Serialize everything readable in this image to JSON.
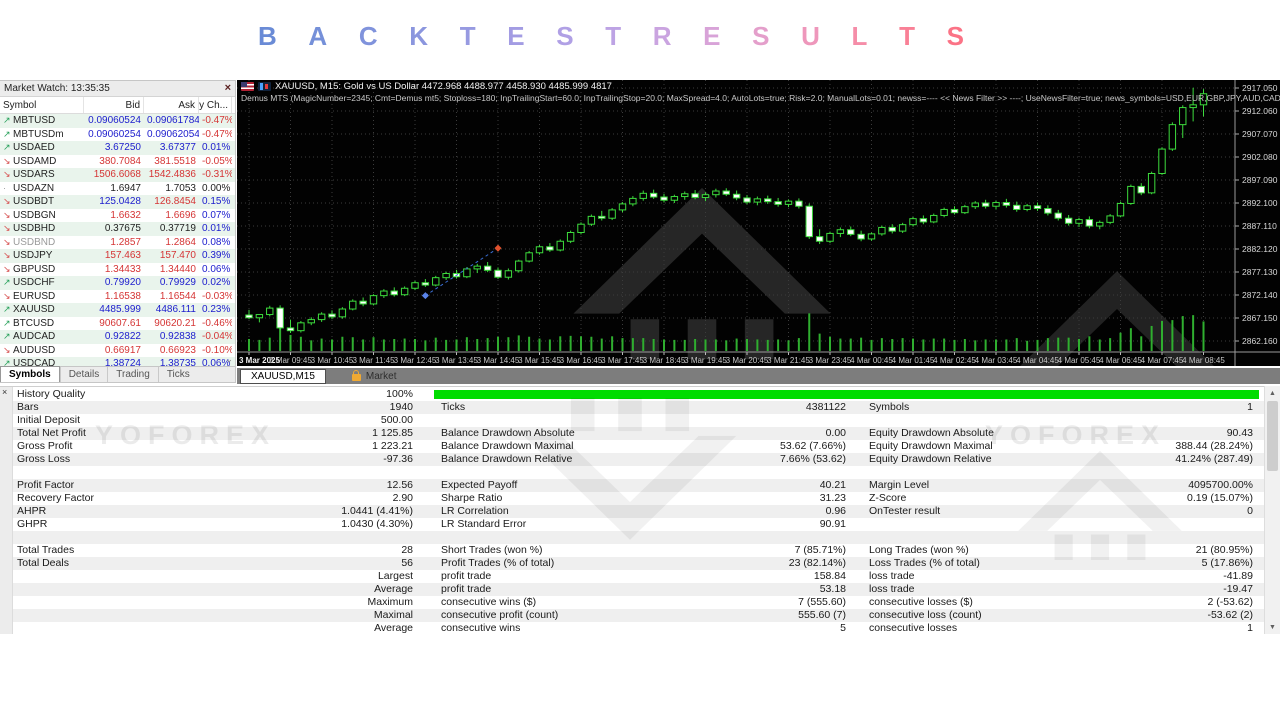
{
  "title": {
    "text": "BACKTEST RESULTS",
    "letters": [
      "B",
      "A",
      "C",
      "K",
      "T",
      "E",
      "S",
      "T",
      "R",
      "E",
      "S",
      "U",
      "L",
      "T",
      "S"
    ],
    "letter_colors": [
      "#6a8bd6",
      "#7590d9",
      "#8093dc",
      "#8b96de",
      "#979ae1",
      "#a39ce3",
      "#b0a0e5",
      "#bda3e4",
      "#caa4e0",
      "#d8a3d8",
      "#e49fcb",
      "#ee97bb",
      "#f58da8",
      "#f98096",
      "#fb7386"
    ]
  },
  "market_watch": {
    "header": "Market Watch: 13:35:35",
    "close_label": "×",
    "columns": [
      "Symbol",
      "Bid",
      "Ask",
      "Daily Ch..."
    ],
    "rows": [
      {
        "sym": "MBTUSD",
        "dir": "u",
        "bid": "0.09060524",
        "ask": "0.09061784",
        "chg": "-0.47%",
        "bc": "b",
        "ac": "b",
        "cc": "r",
        "sc": "n"
      },
      {
        "sym": "MBTUSDm",
        "dir": "u",
        "bid": "0.09060254",
        "ask": "0.09062054",
        "chg": "-0.47%",
        "bc": "b",
        "ac": "b",
        "cc": "r",
        "sc": "n"
      },
      {
        "sym": "USDAED",
        "dir": "u",
        "bid": "3.67250",
        "ask": "3.67377",
        "chg": "0.01%",
        "bc": "b",
        "ac": "b",
        "cc": "b",
        "sc": "n"
      },
      {
        "sym": "USDAMD",
        "dir": "d",
        "bid": "380.7084",
        "ask": "381.5518",
        "chg": "-0.05%",
        "bc": "r",
        "ac": "r",
        "cc": "r",
        "sc": "n"
      },
      {
        "sym": "USDARS",
        "dir": "d",
        "bid": "1506.6068",
        "ask": "1542.4836",
        "chg": "-0.31%",
        "bc": "r",
        "ac": "r",
        "cc": "r",
        "sc": "n"
      },
      {
        "sym": "USDAZN",
        "dir": "n",
        "bid": "1.6947",
        "ask": "1.7053",
        "chg": "0.00%",
        "bc": "k",
        "ac": "k",
        "cc": "k",
        "sc": "n"
      },
      {
        "sym": "USDBDT",
        "dir": "d",
        "bid": "125.0428",
        "ask": "126.8454",
        "chg": "0.15%",
        "bc": "b",
        "ac": "r",
        "cc": "b",
        "sc": "n"
      },
      {
        "sym": "USDBGN",
        "dir": "d",
        "bid": "1.6632",
        "ask": "1.6696",
        "chg": "0.07%",
        "bc": "r",
        "ac": "r",
        "cc": "b",
        "sc": "n"
      },
      {
        "sym": "USDBHD",
        "dir": "d",
        "bid": "0.37675",
        "ask": "0.37719",
        "chg": "0.01%",
        "bc": "k",
        "ac": "k",
        "cc": "b",
        "sc": "n"
      },
      {
        "sym": "USDBND",
        "dir": "d",
        "bid": "1.2857",
        "ask": "1.2864",
        "chg": "0.08%",
        "bc": "r",
        "ac": "r",
        "cc": "b",
        "sc": "g"
      },
      {
        "sym": "USDJPY",
        "dir": "d",
        "bid": "157.463",
        "ask": "157.470",
        "chg": "0.39%",
        "bc": "r",
        "ac": "r",
        "cc": "b",
        "sc": "n"
      },
      {
        "sym": "GBPUSD",
        "dir": "d",
        "bid": "1.34433",
        "ask": "1.34440",
        "chg": "0.06%",
        "bc": "r",
        "ac": "r",
        "cc": "b",
        "sc": "n"
      },
      {
        "sym": "USDCHF",
        "dir": "u",
        "bid": "0.79920",
        "ask": "0.79929",
        "chg": "0.02%",
        "bc": "b",
        "ac": "b",
        "cc": "b",
        "sc": "n"
      },
      {
        "sym": "EURUSD",
        "dir": "d",
        "bid": "1.16538",
        "ask": "1.16544",
        "chg": "-0.03%",
        "bc": "r",
        "ac": "r",
        "cc": "r",
        "sc": "n"
      },
      {
        "sym": "XAUUSD",
        "dir": "u",
        "bid": "4485.999",
        "ask": "4486.111",
        "chg": "0.23%",
        "bc": "b",
        "ac": "b",
        "cc": "b",
        "sc": "n"
      },
      {
        "sym": "BTCUSD",
        "dir": "u",
        "bid": "90607.61",
        "ask": "90620.21",
        "chg": "-0.46%",
        "bc": "r",
        "ac": "r",
        "cc": "r",
        "sc": "n"
      },
      {
        "sym": "AUDCAD",
        "dir": "u",
        "bid": "0.92822",
        "ask": "0.92838",
        "chg": "-0.04%",
        "bc": "b",
        "ac": "b",
        "cc": "r",
        "sc": "n"
      },
      {
        "sym": "AUDUSD",
        "dir": "d",
        "bid": "0.66917",
        "ask": "0.66923",
        "chg": "-0.10%",
        "bc": "r",
        "ac": "r",
        "cc": "r",
        "sc": "n"
      },
      {
        "sym": "USDCAD",
        "dir": "u",
        "bid": "1.38724",
        "ask": "1.38735",
        "chg": "0.06%",
        "bc": "b",
        "ac": "b",
        "cc": "b",
        "sc": "n"
      }
    ],
    "tabs": [
      "Symbols",
      "Details",
      "Trading",
      "Ticks"
    ],
    "active_tab": "Symbols"
  },
  "chart": {
    "title_line": "XAUUSD, M15:  Gold vs US Dollar   4472.968 4488.977 4458.930 4485.999  4817",
    "ea_line": "Demus MTS (MagicNumber=2345; Cmt=Demus mt5; Stoploss=180; InpTrailingStart=60.0; InpTrailingStop=20.0; MaxSpread=4.0; AutoLots=true; Risk=2.0; ManualLots=0.01; newss=---- << News Filter >> ----; UseNewsFilter=true; news_symbols=USD,EUR,GBP,JPY,AUD,CAD)",
    "active_tab": "XAUUSD,M15",
    "market_tab": "Market",
    "price_labels": [
      {
        "text": "2917.050",
        "value": 2917.05
      },
      {
        "text": "2912.060",
        "value": 2912.06
      },
      {
        "text": "2907.070",
        "value": 2907.07
      },
      {
        "text": "2902.080",
        "value": 2902.08
      },
      {
        "text": "2897.090",
        "value": 2897.09
      },
      {
        "text": "2892.100",
        "value": 2892.1
      },
      {
        "text": "2887.110",
        "value": 2887.11
      },
      {
        "text": "2882.120",
        "value": 2882.12
      },
      {
        "text": "2877.130",
        "value": 2877.13
      },
      {
        "text": "2872.140",
        "value": 2872.14
      },
      {
        "text": "2867.150",
        "value": 2867.15
      },
      {
        "text": "2862.160",
        "value": 2862.16
      }
    ],
    "time_labels": [
      "3 Mar 2025",
      "3 Mar 09:45",
      "3 Mar 10:45",
      "3 Mar 11:45",
      "3 Mar 12:45",
      "3 Mar 13:45",
      "3 Mar 14:45",
      "3 Mar 15:45",
      "3 Mar 16:45",
      "3 Mar 17:45",
      "3 Mar 18:45",
      "3 Mar 19:45",
      "3 Mar 20:45",
      "3 Mar 21:45",
      "3 Mar 23:45",
      "4 Mar 00:45",
      "4 Mar 01:45",
      "4 Mar 02:45",
      "4 Mar 03:45",
      "4 Mar 04:45",
      "4 Mar 05:45",
      "4 Mar 06:45",
      "4 Mar 07:45",
      "4 Mar 08:45"
    ],
    "colors": {
      "bull_fill": "#000000",
      "bear_fill": "#ffffff",
      "candle_stroke": "#3ddc3d",
      "volume": "#2fae2f",
      "grid": "#3c3c3c",
      "axis_text": "#d8d8d8",
      "trend": "#3b6fd4",
      "marker_start": "#5a83e8",
      "marker_end": "#e0512d"
    },
    "candles": [
      [
        2867.8,
        2868.9,
        2866.9,
        2867.2
      ],
      [
        2867.2,
        2868.0,
        2866.2,
        2867.9
      ],
      [
        2867.9,
        2869.8,
        2867.5,
        2869.3
      ],
      [
        2869.3,
        2869.9,
        2864.6,
        2865.0
      ],
      [
        2865.0,
        2866.8,
        2863.9,
        2864.4
      ],
      [
        2864.4,
        2866.5,
        2864.0,
        2866.1
      ],
      [
        2866.1,
        2867.3,
        2865.6,
        2866.8
      ],
      [
        2866.8,
        2868.4,
        2866.3,
        2868.0
      ],
      [
        2868.0,
        2868.8,
        2866.9,
        2867.4
      ],
      [
        2867.4,
        2869.5,
        2867.0,
        2869.1
      ],
      [
        2869.1,
        2871.2,
        2868.8,
        2870.8
      ],
      [
        2870.8,
        2871.6,
        2869.7,
        2870.2
      ],
      [
        2870.2,
        2872.3,
        2869.9,
        2872.0
      ],
      [
        2872.0,
        2873.4,
        2871.5,
        2873.0
      ],
      [
        2873.0,
        2873.8,
        2871.8,
        2872.2
      ],
      [
        2872.2,
        2874.0,
        2871.9,
        2873.6
      ],
      [
        2873.6,
        2875.2,
        2873.2,
        2874.8
      ],
      [
        2874.8,
        2875.6,
        2873.9,
        2874.3
      ],
      [
        2874.3,
        2876.3,
        2874.0,
        2875.9
      ],
      [
        2875.9,
        2877.2,
        2875.4,
        2876.8
      ],
      [
        2876.8,
        2877.6,
        2875.7,
        2876.1
      ],
      [
        2876.1,
        2878.2,
        2875.8,
        2877.8
      ],
      [
        2877.8,
        2878.9,
        2876.9,
        2878.4
      ],
      [
        2878.4,
        2879.3,
        2877.1,
        2877.5
      ],
      [
        2877.5,
        2878.1,
        2875.6,
        2876.0
      ],
      [
        2876.0,
        2877.9,
        2875.5,
        2877.4
      ],
      [
        2877.4,
        2879.8,
        2877.0,
        2879.5
      ],
      [
        2879.5,
        2881.7,
        2879.2,
        2881.3
      ],
      [
        2881.3,
        2883.0,
        2880.9,
        2882.6
      ],
      [
        2882.6,
        2883.4,
        2881.5,
        2881.9
      ],
      [
        2881.9,
        2884.2,
        2881.6,
        2883.8
      ],
      [
        2883.8,
        2886.1,
        2883.4,
        2885.7
      ],
      [
        2885.7,
        2887.9,
        2885.3,
        2887.5
      ],
      [
        2887.5,
        2889.6,
        2887.1,
        2889.2
      ],
      [
        2889.2,
        2890.4,
        2888.3,
        2888.8
      ],
      [
        2888.8,
        2891.0,
        2888.4,
        2890.6
      ],
      [
        2890.6,
        2892.3,
        2890.1,
        2891.9
      ],
      [
        2891.9,
        2893.6,
        2891.4,
        2893.1
      ],
      [
        2893.1,
        2894.8,
        2892.6,
        2894.2
      ],
      [
        2894.2,
        2895.0,
        2893.0,
        2893.4
      ],
      [
        2893.4,
        2894.1,
        2892.2,
        2892.7
      ],
      [
        2892.7,
        2893.9,
        2892.1,
        2893.5
      ],
      [
        2893.5,
        2894.6,
        2892.8,
        2894.1
      ],
      [
        2894.1,
        2894.9,
        2892.9,
        2893.3
      ],
      [
        2893.3,
        2894.4,
        2892.5,
        2893.9
      ],
      [
        2893.9,
        2895.2,
        2893.3,
        2894.7
      ],
      [
        2894.7,
        2895.3,
        2893.6,
        2894.0
      ],
      [
        2894.0,
        2894.8,
        2892.7,
        2893.2
      ],
      [
        2893.2,
        2893.8,
        2891.8,
        2892.3
      ],
      [
        2892.3,
        2893.5,
        2891.6,
        2893.0
      ],
      [
        2893.0,
        2893.7,
        2891.9,
        2892.4
      ],
      [
        2892.4,
        2893.2,
        2891.3,
        2891.8
      ],
      [
        2891.8,
        2892.9,
        2891.2,
        2892.5
      ],
      [
        2892.5,
        2893.1,
        2890.9,
        2891.4
      ],
      [
        2891.4,
        2892.0,
        2884.3,
        2884.8
      ],
      [
        2884.8,
        2886.4,
        2883.2,
        2883.8
      ],
      [
        2883.8,
        2885.9,
        2883.4,
        2885.5
      ],
      [
        2885.5,
        2886.8,
        2884.7,
        2886.3
      ],
      [
        2886.3,
        2887.0,
        2884.9,
        2885.3
      ],
      [
        2885.3,
        2886.1,
        2883.8,
        2884.3
      ],
      [
        2884.3,
        2885.7,
        2883.9,
        2885.4
      ],
      [
        2885.4,
        2887.2,
        2885.0,
        2886.8
      ],
      [
        2886.8,
        2887.5,
        2885.5,
        2886.0
      ],
      [
        2886.0,
        2887.8,
        2885.6,
        2887.4
      ],
      [
        2887.4,
        2889.1,
        2887.0,
        2888.7
      ],
      [
        2888.7,
        2889.4,
        2887.5,
        2888.0
      ],
      [
        2888.0,
        2889.8,
        2887.7,
        2889.4
      ],
      [
        2889.4,
        2891.1,
        2889.0,
        2890.7
      ],
      [
        2890.7,
        2891.4,
        2889.6,
        2890.0
      ],
      [
        2890.0,
        2891.7,
        2889.7,
        2891.3
      ],
      [
        2891.3,
        2892.5,
        2890.8,
        2892.1
      ],
      [
        2892.1,
        2892.8,
        2890.9,
        2891.4
      ],
      [
        2891.4,
        2892.6,
        2890.7,
        2892.2
      ],
      [
        2892.2,
        2893.0,
        2891.1,
        2891.6
      ],
      [
        2891.6,
        2892.4,
        2890.2,
        2890.7
      ],
      [
        2890.7,
        2891.9,
        2890.3,
        2891.5
      ],
      [
        2891.5,
        2892.2,
        2890.4,
        2890.9
      ],
      [
        2890.9,
        2891.6,
        2889.4,
        2889.9
      ],
      [
        2889.9,
        2890.6,
        2888.3,
        2888.8
      ],
      [
        2888.8,
        2889.5,
        2887.2,
        2887.7
      ],
      [
        2887.7,
        2888.9,
        2886.9,
        2888.5
      ],
      [
        2888.5,
        2889.2,
        2886.6,
        2887.1
      ],
      [
        2887.1,
        2888.3,
        2886.4,
        2887.9
      ],
      [
        2887.9,
        2889.7,
        2887.5,
        2889.3
      ],
      [
        2889.3,
        2892.4,
        2889.0,
        2892.0
      ],
      [
        2892.0,
        2896.1,
        2891.7,
        2895.7
      ],
      [
        2895.7,
        2896.4,
        2893.8,
        2894.3
      ],
      [
        2894.3,
        2898.9,
        2894.0,
        2898.5
      ],
      [
        2898.5,
        2904.2,
        2898.2,
        2903.8
      ],
      [
        2903.8,
        2909.6,
        2903.4,
        2909.1
      ],
      [
        2909.1,
        2913.3,
        2906.2,
        2912.8
      ],
      [
        2912.8,
        2917.1,
        2909.8,
        2913.4
      ],
      [
        2913.4,
        2916.8,
        2910.9,
        2915.8
      ]
    ],
    "trendline": {
      "bar1": 17,
      "price1": 2872.0,
      "bar2": 24,
      "price2": 2882.3
    }
  },
  "results": {
    "close_label": "×",
    "history_quality_color": "#00dc00",
    "rows": [
      {
        "c1l": "History Quality",
        "c1v": "100%",
        "c2l": "",
        "c2v": "",
        "c3l": "",
        "c3v": "",
        "bar": true
      },
      {
        "c1l": "Bars",
        "c1v": "1940",
        "c2l": "Ticks",
        "c2v": "4381122",
        "c3l": "Symbols",
        "c3v": "1"
      },
      {
        "c1l": "Initial Deposit",
        "c1v": "500.00",
        "c2l": "",
        "c2v": "",
        "c3l": "",
        "c3v": ""
      },
      {
        "c1l": "Total Net Profit",
        "c1v": "1 125.85",
        "c2l": "Balance Drawdown Absolute",
        "c2v": "0.00",
        "c3l": "Equity Drawdown Absolute",
        "c3v": "90.43"
      },
      {
        "c1l": "Gross Profit",
        "c1v": "1 223.21",
        "c2l": "Balance Drawdown Maximal",
        "c2v": "53.62 (7.66%)",
        "c3l": "Equity Drawdown Maximal",
        "c3v": "388.44 (28.24%)"
      },
      {
        "c1l": "Gross Loss",
        "c1v": "-97.36",
        "c2l": "Balance Drawdown Relative",
        "c2v": "7.66% (53.62)",
        "c3l": "Equity Drawdown Relative",
        "c3v": "41.24% (287.49)"
      },
      {
        "c1l": "",
        "c1v": "",
        "c2l": "",
        "c2v": "",
        "c3l": "",
        "c3v": ""
      },
      {
        "c1l": "Profit Factor",
        "c1v": "12.56",
        "c2l": "Expected Payoff",
        "c2v": "40.21",
        "c3l": "Margin Level",
        "c3v": "4095700.00%"
      },
      {
        "c1l": "Recovery Factor",
        "c1v": "2.90",
        "c2l": "Sharpe Ratio",
        "c2v": "31.23",
        "c3l": "Z-Score",
        "c3v": "0.19 (15.07%)"
      },
      {
        "c1l": "AHPR",
        "c1v": "1.0441 (4.41%)",
        "c2l": "LR Correlation",
        "c2v": "0.96",
        "c3l": "OnTester result",
        "c3v": "0"
      },
      {
        "c1l": "GHPR",
        "c1v": "1.0430 (4.30%)",
        "c2l": "LR Standard Error",
        "c2v": "90.91",
        "c3l": "",
        "c3v": ""
      },
      {
        "c1l": "",
        "c1v": "",
        "c2l": "",
        "c2v": "",
        "c3l": "",
        "c3v": ""
      },
      {
        "c1l": "Total Trades",
        "c1v": "28",
        "c2l": "Short Trades (won %)",
        "c2v": "7 (85.71%)",
        "c3l": "Long Trades (won %)",
        "c3v": "21 (80.95%)"
      },
      {
        "c1l": "Total Deals",
        "c1v": "56",
        "c2l": "Profit Trades (% of total)",
        "c2v": "23 (82.14%)",
        "c3l": "Loss Trades (% of total)",
        "c3v": "5 (17.86%)"
      },
      {
        "c1l": "",
        "c1v": "Largest",
        "c2l": "profit trade",
        "c2v": "158.84",
        "c3l": "loss trade",
        "c3v": "-41.89"
      },
      {
        "c1l": "",
        "c1v": "Average",
        "c2l": "profit trade",
        "c2v": "53.18",
        "c3l": "loss trade",
        "c3v": "-19.47"
      },
      {
        "c1l": "",
        "c1v": "Maximum",
        "c2l": "consecutive wins ($)",
        "c2v": "7 (555.60)",
        "c3l": "consecutive losses ($)",
        "c3v": "2 (-53.62)"
      },
      {
        "c1l": "",
        "c1v": "Maximal",
        "c2l": "consecutive profit (count)",
        "c2v": "555.60 (7)",
        "c3l": "consecutive loss (count)",
        "c3v": "-53.62 (2)"
      },
      {
        "c1l": "",
        "c1v": "Average",
        "c2l": "consecutive wins",
        "c2v": "5",
        "c3l": "consecutive losses",
        "c3v": "1"
      }
    ]
  },
  "watermark": {
    "text": "YOFOREX"
  }
}
